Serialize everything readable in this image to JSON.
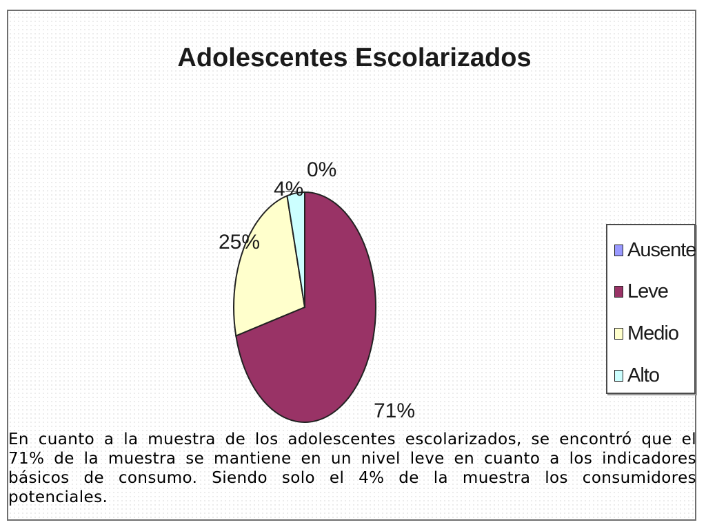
{
  "chart_data": {
    "type": "pie",
    "title": "Adolescentes Escolarizados",
    "categories": [
      "Ausente",
      "Leve",
      "Medio",
      "Alto"
    ],
    "values": [
      0,
      71,
      25,
      4
    ],
    "labels": [
      "0%",
      "71%",
      "25%",
      "4%"
    ],
    "colors": [
      "#9999ff",
      "#993366",
      "#ffffcc",
      "#ccffff"
    ],
    "legend_placement": "right"
  },
  "caption": "En cuanto a la muestra de los adolescentes escolarizados, se encontró que el 71% de la muestra se mantiene en un nivel leve en cuanto a los indicadores básicos de consumo. Siendo solo el 4% de la muestra los consumidores potenciales."
}
